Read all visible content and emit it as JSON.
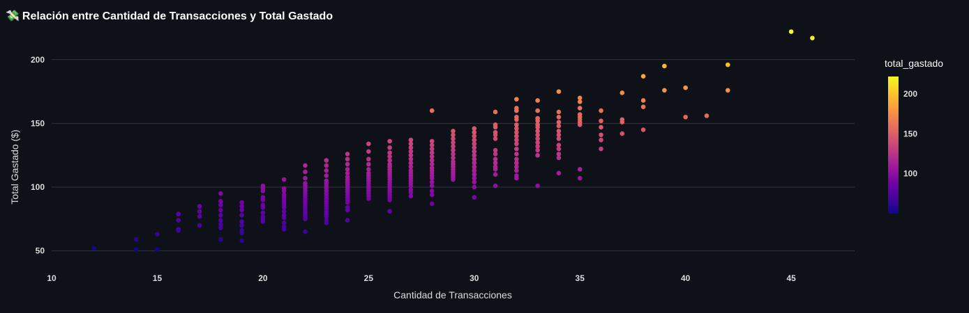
{
  "page": {
    "title": "Relación entre Cantidad de Transacciones y Total Gastado",
    "title_icon": "💸"
  },
  "chart_data": {
    "type": "scatter",
    "title": "Relación entre Cantidad de Transacciones y Total Gastado",
    "xlabel": "Cantidad de Transacciones",
    "ylabel": "Total Gastado ($)",
    "xlim": [
      10,
      48
    ],
    "ylim": [
      40,
      225
    ],
    "xticks": [
      10,
      15,
      20,
      25,
      30,
      35,
      40,
      45
    ],
    "yticks": [
      50,
      100,
      150,
      200
    ],
    "grid": "horizontal",
    "colorscale": "plasma",
    "colorbar": {
      "title": "total_gastado",
      "range": [
        50,
        222
      ],
      "ticks": [
        100,
        150,
        200
      ],
      "colors": [
        "#0d0887",
        "#46039f",
        "#7201a8",
        "#9c179e",
        "#bd3786",
        "#d8576b",
        "#ed7953",
        "#fb9f3a",
        "#fdca26",
        "#f0f921"
      ]
    },
    "points": [
      [
        12,
        52
      ],
      [
        14,
        59
      ],
      [
        14,
        51
      ],
      [
        15,
        63
      ],
      [
        15,
        51
      ],
      [
        16,
        79
      ],
      [
        16,
        74
      ],
      [
        16,
        67
      ],
      [
        16,
        66
      ],
      [
        17,
        85
      ],
      [
        17,
        81
      ],
      [
        17,
        77
      ],
      [
        17,
        70
      ],
      [
        18,
        95
      ],
      [
        18,
        89
      ],
      [
        18,
        86
      ],
      [
        18,
        82
      ],
      [
        18,
        78
      ],
      [
        18,
        74
      ],
      [
        18,
        71
      ],
      [
        18,
        68
      ],
      [
        18,
        59
      ],
      [
        19,
        88
      ],
      [
        19,
        85
      ],
      [
        19,
        82
      ],
      [
        19,
        78
      ],
      [
        19,
        73
      ],
      [
        19,
        70
      ],
      [
        19,
        66
      ],
      [
        19,
        64
      ],
      [
        19,
        58
      ],
      [
        20,
        101
      ],
      [
        20,
        99
      ],
      [
        20,
        97
      ],
      [
        20,
        92
      ],
      [
        20,
        90
      ],
      [
        20,
        86
      ],
      [
        20,
        84
      ],
      [
        20,
        80
      ],
      [
        20,
        77
      ],
      [
        20,
        75
      ],
      [
        20,
        73
      ],
      [
        21,
        106
      ],
      [
        21,
        99
      ],
      [
        21,
        97
      ],
      [
        21,
        94
      ],
      [
        21,
        92
      ],
      [
        21,
        90
      ],
      [
        21,
        88
      ],
      [
        21,
        86
      ],
      [
        21,
        84
      ],
      [
        21,
        81
      ],
      [
        21,
        78
      ],
      [
        21,
        76
      ],
      [
        21,
        72
      ],
      [
        21,
        69
      ],
      [
        21,
        67
      ],
      [
        22,
        117
      ],
      [
        22,
        112
      ],
      [
        22,
        107
      ],
      [
        22,
        103
      ],
      [
        22,
        101
      ],
      [
        22,
        99
      ],
      [
        22,
        97
      ],
      [
        22,
        95
      ],
      [
        22,
        93
      ],
      [
        22,
        91
      ],
      [
        22,
        89
      ],
      [
        22,
        87
      ],
      [
        22,
        85
      ],
      [
        22,
        83
      ],
      [
        22,
        81
      ],
      [
        22,
        79
      ],
      [
        22,
        77
      ],
      [
        22,
        75
      ],
      [
        22,
        65
      ],
      [
        23,
        121
      ],
      [
        23,
        117
      ],
      [
        23,
        113
      ],
      [
        23,
        109
      ],
      [
        23,
        105
      ],
      [
        23,
        103
      ],
      [
        23,
        101
      ],
      [
        23,
        99
      ],
      [
        23,
        97
      ],
      [
        23,
        95
      ],
      [
        23,
        93
      ],
      [
        23,
        91
      ],
      [
        23,
        89
      ],
      [
        23,
        87
      ],
      [
        23,
        85
      ],
      [
        23,
        83
      ],
      [
        23,
        81
      ],
      [
        23,
        79
      ],
      [
        23,
        77
      ],
      [
        23,
        74
      ],
      [
        23,
        72
      ],
      [
        24,
        126
      ],
      [
        24,
        122
      ],
      [
        24,
        118
      ],
      [
        24,
        114
      ],
      [
        24,
        111
      ],
      [
        24,
        108
      ],
      [
        24,
        106
      ],
      [
        24,
        104
      ],
      [
        24,
        102
      ],
      [
        24,
        100
      ],
      [
        24,
        98
      ],
      [
        24,
        96
      ],
      [
        24,
        94
      ],
      [
        24,
        92
      ],
      [
        24,
        90
      ],
      [
        24,
        88
      ],
      [
        24,
        84
      ],
      [
        24,
        82
      ],
      [
        24,
        74
      ],
      [
        25,
        134
      ],
      [
        25,
        128
      ],
      [
        25,
        122
      ],
      [
        25,
        118
      ],
      [
        25,
        114
      ],
      [
        25,
        111
      ],
      [
        25,
        109
      ],
      [
        25,
        107
      ],
      [
        25,
        105
      ],
      [
        25,
        103
      ],
      [
        25,
        101
      ],
      [
        25,
        99
      ],
      [
        25,
        97
      ],
      [
        25,
        95
      ],
      [
        25,
        93
      ],
      [
        25,
        91
      ],
      [
        26,
        136
      ],
      [
        26,
        131
      ],
      [
        26,
        127
      ],
      [
        26,
        124
      ],
      [
        26,
        121
      ],
      [
        26,
        118
      ],
      [
        26,
        116
      ],
      [
        26,
        114
      ],
      [
        26,
        112
      ],
      [
        26,
        110
      ],
      [
        26,
        108
      ],
      [
        26,
        106
      ],
      [
        26,
        104
      ],
      [
        26,
        102
      ],
      [
        26,
        100
      ],
      [
        26,
        98
      ],
      [
        26,
        96
      ],
      [
        26,
        94
      ],
      [
        26,
        92
      ],
      [
        26,
        90
      ],
      [
        26,
        81
      ],
      [
        27,
        137
      ],
      [
        27,
        134
      ],
      [
        27,
        131
      ],
      [
        27,
        128
      ],
      [
        27,
        125
      ],
      [
        27,
        122
      ],
      [
        27,
        119
      ],
      [
        27,
        116
      ],
      [
        27,
        113
      ],
      [
        27,
        111
      ],
      [
        27,
        109
      ],
      [
        27,
        107
      ],
      [
        27,
        105
      ],
      [
        27,
        103
      ],
      [
        27,
        101
      ],
      [
        27,
        98
      ],
      [
        27,
        96
      ],
      [
        27,
        93
      ],
      [
        28,
        160
      ],
      [
        28,
        136
      ],
      [
        28,
        133
      ],
      [
        28,
        130
      ],
      [
        28,
        127
      ],
      [
        28,
        124
      ],
      [
        28,
        121
      ],
      [
        28,
        118
      ],
      [
        28,
        115
      ],
      [
        28,
        113
      ],
      [
        28,
        111
      ],
      [
        28,
        109
      ],
      [
        28,
        107
      ],
      [
        28,
        104
      ],
      [
        28,
        101
      ],
      [
        28,
        97
      ],
      [
        28,
        94
      ],
      [
        28,
        87
      ],
      [
        29,
        144
      ],
      [
        29,
        141
      ],
      [
        29,
        138
      ],
      [
        29,
        135
      ],
      [
        29,
        132
      ],
      [
        29,
        129
      ],
      [
        29,
        126
      ],
      [
        29,
        123
      ],
      [
        29,
        120
      ],
      [
        29,
        118
      ],
      [
        29,
        116
      ],
      [
        29,
        114
      ],
      [
        29,
        112
      ],
      [
        29,
        110
      ],
      [
        29,
        108
      ],
      [
        29,
        106
      ],
      [
        30,
        146
      ],
      [
        30,
        143
      ],
      [
        30,
        140
      ],
      [
        30,
        137
      ],
      [
        30,
        134
      ],
      [
        30,
        131
      ],
      [
        30,
        128
      ],
      [
        30,
        125
      ],
      [
        30,
        122
      ],
      [
        30,
        119
      ],
      [
        30,
        116
      ],
      [
        30,
        113
      ],
      [
        30,
        110
      ],
      [
        30,
        107
      ],
      [
        30,
        104
      ],
      [
        30,
        100
      ],
      [
        30,
        92
      ],
      [
        31,
        159
      ],
      [
        31,
        149
      ],
      [
        31,
        147
      ],
      [
        31,
        143
      ],
      [
        31,
        141
      ],
      [
        31,
        138
      ],
      [
        31,
        129
      ],
      [
        31,
        126
      ],
      [
        31,
        122
      ],
      [
        31,
        119
      ],
      [
        31,
        116
      ],
      [
        31,
        114
      ],
      [
        31,
        110
      ],
      [
        31,
        101
      ],
      [
        32,
        169
      ],
      [
        32,
        162
      ],
      [
        32,
        160
      ],
      [
        32,
        155
      ],
      [
        32,
        153
      ],
      [
        32,
        149
      ],
      [
        32,
        146
      ],
      [
        32,
        143
      ],
      [
        32,
        140
      ],
      [
        32,
        137
      ],
      [
        32,
        134
      ],
      [
        32,
        130
      ],
      [
        32,
        126
      ],
      [
        32,
        122
      ],
      [
        32,
        119
      ],
      [
        32,
        116
      ],
      [
        32,
        113
      ],
      [
        32,
        109
      ],
      [
        32,
        107
      ],
      [
        33,
        168
      ],
      [
        33,
        160
      ],
      [
        33,
        154
      ],
      [
        33,
        152
      ],
      [
        33,
        149
      ],
      [
        33,
        147
      ],
      [
        33,
        144
      ],
      [
        33,
        141
      ],
      [
        33,
        138
      ],
      [
        33,
        135
      ],
      [
        33,
        132
      ],
      [
        33,
        129
      ],
      [
        33,
        125
      ],
      [
        33,
        101
      ],
      [
        34,
        175
      ],
      [
        34,
        159
      ],
      [
        34,
        155
      ],
      [
        34,
        151
      ],
      [
        34,
        148
      ],
      [
        34,
        144
      ],
      [
        34,
        141
      ],
      [
        34,
        138
      ],
      [
        34,
        133
      ],
      [
        34,
        130
      ],
      [
        34,
        126
      ],
      [
        34,
        123
      ],
      [
        34,
        111
      ],
      [
        35,
        170
      ],
      [
        35,
        167
      ],
      [
        35,
        162
      ],
      [
        35,
        157
      ],
      [
        35,
        155
      ],
      [
        35,
        153
      ],
      [
        35,
        151
      ],
      [
        35,
        149
      ],
      [
        35,
        114
      ],
      [
        35,
        107
      ],
      [
        36,
        160
      ],
      [
        36,
        152
      ],
      [
        36,
        147
      ],
      [
        36,
        141
      ],
      [
        36,
        137
      ],
      [
        36,
        130
      ],
      [
        37,
        174
      ],
      [
        37,
        153
      ],
      [
        37,
        151
      ],
      [
        37,
        142
      ],
      [
        38,
        187
      ],
      [
        38,
        168
      ],
      [
        38,
        163
      ],
      [
        38,
        145
      ],
      [
        39,
        195
      ],
      [
        39,
        176
      ],
      [
        40,
        178
      ],
      [
        40,
        155
      ],
      [
        41,
        156
      ],
      [
        42,
        196
      ],
      [
        42,
        176
      ],
      [
        45,
        222
      ],
      [
        46,
        217
      ]
    ]
  }
}
